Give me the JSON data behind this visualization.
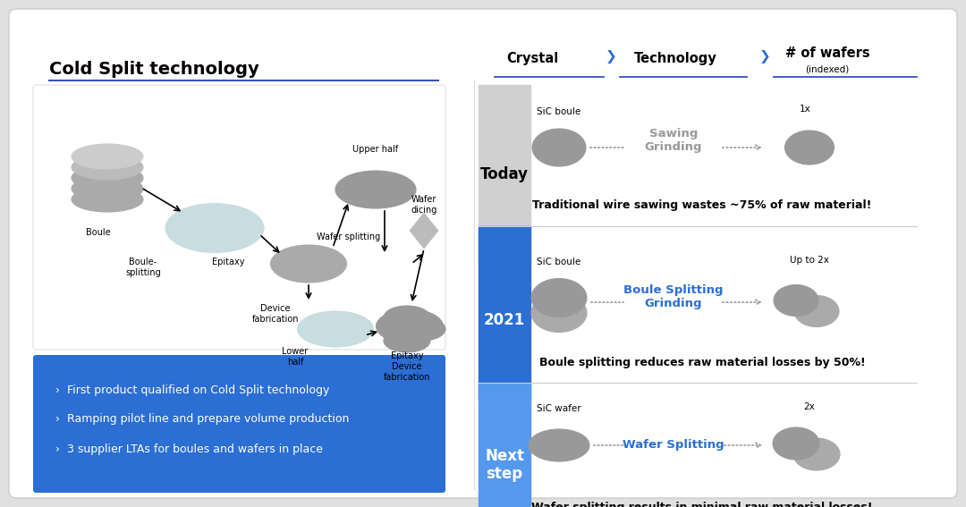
{
  "bg_color": "#ffffff",
  "outer_bg": "#e0e0e0",
  "title_left": "Cold Split technology",
  "title_line_color": "#3355bb",
  "header_crystal": "Crystal",
  "header_technology": "Technology",
  "header_wafers": "# of wafers",
  "header_wafers_sub": "(indexed)",
  "blue_box_color": "#2B6ED4",
  "light_blue_box_color": "#5599EE",
  "today_bg": "#d0d0d0",
  "today_label": "Today",
  "year_label": "2021",
  "next_label": "Next\nstep",
  "row1_crystal_label": "SiC boule",
  "row1_tech_label": "Sawing\nGrinding",
  "row1_tech_color": "#999999",
  "row1_wafer_label": "1x",
  "row1_note": "Traditional wire sawing wastes ~75% of raw material!",
  "row2_crystal_label": "SiC boule",
  "row2_tech_label": "Boule Splitting\nGrinding",
  "row2_tech_color": "#2B6ED4",
  "row2_wafer_label": "Up to 2x",
  "row2_note": "Boule splitting reduces raw material losses by 50%!",
  "row3_crystal_label": "SiC wafer",
  "row3_tech_label": "Wafer Splitting",
  "row3_tech_color": "#2B6ED4",
  "row3_wafer_label": "2x",
  "row3_note": "Wafer splitting results in minimal raw material losses!",
  "bullet_points": [
    "First product qualified on Cold Split technology",
    "Ramping pilot line and prepare volume production",
    "3 supplier LTAs for boules and wafers in place"
  ]
}
